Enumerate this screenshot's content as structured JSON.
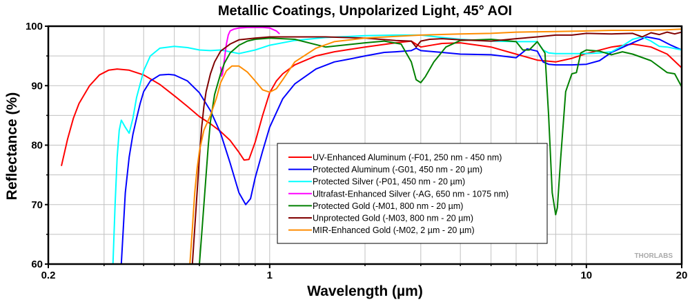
{
  "chart_data": {
    "type": "line",
    "title": "Metallic Coatings, Unpolarized Light, 45° AOI",
    "xlabel": "Wavelength (µm)",
    "ylabel": "Reflectance (%)",
    "xscale": "log",
    "xlim": [
      0.2,
      20
    ],
    "ylim": [
      60,
      100
    ],
    "xticks": [
      0.2,
      1,
      10,
      20
    ],
    "xtick_labels": [
      "0.2",
      "1",
      "10",
      "20"
    ],
    "xminor": [
      0.3,
      0.4,
      0.5,
      0.6,
      0.7,
      0.8,
      0.9,
      2,
      3,
      4,
      5,
      6,
      7,
      8,
      9
    ],
    "yticks": [
      60,
      70,
      80,
      90,
      100
    ],
    "ytick_labels": [
      "60",
      "70",
      "80",
      "90",
      "100"
    ],
    "yminor": [
      65,
      75,
      85,
      95
    ],
    "grid": true,
    "legend_position": "center-right",
    "watermark": "THORLABS",
    "series": [
      {
        "name": "UV-Enhanced Aluminum (-F01, 250 nm - 450 nm)",
        "color": "#ff0000",
        "x": [
          0.22,
          0.23,
          0.24,
          0.25,
          0.27,
          0.29,
          0.31,
          0.33,
          0.36,
          0.4,
          0.45,
          0.5,
          0.55,
          0.6,
          0.65,
          0.7,
          0.75,
          0.8,
          0.83,
          0.86,
          0.9,
          0.95,
          1.0,
          1.05,
          1.1,
          1.2,
          1.4,
          1.6,
          2.0,
          2.5,
          2.8,
          3.0,
          3.5,
          4.0,
          5.0,
          6.0,
          7.0,
          8.0,
          9.0,
          10.0,
          12.0,
          14.0,
          16.0,
          18.0,
          20.0
        ],
        "y": [
          76.5,
          81.0,
          84.5,
          87.0,
          90.0,
          91.8,
          92.6,
          92.8,
          92.6,
          91.8,
          90.2,
          88.3,
          86.5,
          84.8,
          83.6,
          82.3,
          80.8,
          78.8,
          77.5,
          77.6,
          80.5,
          85.0,
          88.8,
          90.8,
          92.0,
          93.5,
          95.0,
          95.7,
          96.5,
          97.2,
          97.5,
          96.5,
          97.1,
          97.2,
          96.5,
          95.3,
          94.3,
          94.0,
          94.6,
          95.4,
          96.5,
          97.0,
          96.5,
          95.3,
          93.0
        ]
      },
      {
        "name": "Protected Aluminum (-G01, 450 nm - 20 µm)",
        "color": "#0000ff",
        "x": [
          0.34,
          0.345,
          0.35,
          0.36,
          0.37,
          0.38,
          0.39,
          0.4,
          0.42,
          0.45,
          0.48,
          0.5,
          0.55,
          0.6,
          0.65,
          0.7,
          0.75,
          0.8,
          0.84,
          0.87,
          0.9,
          0.95,
          1.0,
          1.1,
          1.2,
          1.4,
          1.6,
          1.8,
          2.0,
          2.3,
          2.5,
          2.8,
          2.9,
          3.0,
          3.5,
          4.0,
          5.0,
          6.0,
          6.5,
          7.0,
          7.3,
          7.6,
          8.0,
          9.0,
          10.0,
          11.0,
          12.0,
          14.0,
          15.5,
          17.0,
          18.5,
          20.0
        ],
        "y": [
          60.0,
          66.0,
          72.0,
          78.0,
          81.8,
          84.5,
          87.0,
          89.0,
          90.8,
          91.8,
          91.9,
          91.8,
          90.8,
          88.8,
          85.8,
          82.0,
          77.0,
          72.0,
          70.0,
          71.0,
          74.5,
          79.0,
          83.0,
          87.8,
          90.3,
          92.8,
          94.0,
          94.5,
          95.0,
          95.6,
          95.7,
          95.9,
          96.3,
          95.9,
          95.6,
          95.3,
          95.2,
          94.7,
          96.2,
          95.8,
          94.0,
          93.6,
          93.5,
          93.5,
          93.6,
          94.2,
          95.6,
          97.2,
          98.2,
          97.8,
          96.8,
          96.0
        ]
      },
      {
        "name": "Protected Silver (-P01, 450 nm - 20 µm)",
        "color": "#00ffff",
        "x": [
          0.32,
          0.325,
          0.33,
          0.335,
          0.34,
          0.35,
          0.36,
          0.37,
          0.38,
          0.4,
          0.42,
          0.45,
          0.5,
          0.55,
          0.6,
          0.65,
          0.7,
          0.75,
          0.8,
          0.9,
          1.0,
          1.2,
          1.5,
          2.0,
          2.5,
          3.0,
          3.5,
          4.0,
          5.0,
          6.0,
          7.0,
          7.3,
          7.6,
          8.0,
          9.0,
          10.0,
          11.0,
          12.0,
          13.0,
          14.0,
          15.0,
          16.0,
          17.0,
          18.0,
          20.0
        ],
        "y": [
          60.0,
          70.0,
          78.0,
          82.5,
          84.2,
          83.0,
          82.0,
          84.5,
          88.0,
          92.5,
          95.0,
          96.3,
          96.6,
          96.4,
          96.0,
          95.9,
          96.0,
          95.7,
          95.4,
          96.0,
          96.8,
          97.6,
          98.1,
          98.4,
          98.5,
          98.5,
          98.1,
          97.8,
          97.5,
          97.4,
          97.4,
          96.0,
          95.5,
          95.4,
          95.4,
          95.4,
          95.5,
          95.7,
          96.7,
          97.8,
          98.2,
          97.5,
          96.6,
          96.5,
          96.0
        ]
      },
      {
        "name": "Ultrafast-Enhanced Silver (-AG, 650 nm - 1075 nm)",
        "color": "#ff00ff",
        "x": [
          0.7,
          0.705,
          0.71,
          0.72,
          0.73,
          0.74,
          0.75,
          0.77,
          0.8,
          0.85,
          0.9,
          0.95,
          1.0,
          1.05,
          1.075
        ],
        "y": [
          93.2,
          91.6,
          92.0,
          94.5,
          97.0,
          98.5,
          99.2,
          99.5,
          99.7,
          99.8,
          99.8,
          99.8,
          99.7,
          99.2,
          98.7
        ]
      },
      {
        "name": "Protected Gold (-M01, 800 nm - 20 µm)",
        "color": "#008000",
        "x": [
          0.6,
          0.61,
          0.62,
          0.63,
          0.64,
          0.65,
          0.67,
          0.7,
          0.72,
          0.75,
          0.8,
          0.85,
          0.9,
          1.0,
          1.2,
          1.5,
          2.0,
          2.3,
          2.6,
          2.8,
          2.9,
          3.0,
          3.1,
          3.3,
          3.6,
          4.0,
          5.0,
          6.0,
          6.3,
          6.6,
          7.0,
          7.4,
          7.6,
          7.8,
          8.0,
          8.1,
          8.3,
          8.6,
          9.0,
          9.3,
          9.6,
          10.0,
          11.0,
          12.0,
          13.0,
          14.0,
          16.0,
          18.0,
          19.0,
          20.0
        ],
        "y": [
          60.0,
          65.0,
          70.0,
          75.0,
          80.0,
          84.0,
          88.5,
          92.0,
          93.8,
          95.5,
          96.8,
          97.5,
          97.8,
          98.0,
          97.8,
          96.5,
          97.2,
          97.5,
          97.0,
          94.0,
          91.0,
          90.5,
          91.5,
          94.0,
          96.5,
          97.6,
          97.8,
          97.4,
          96.0,
          96.0,
          97.4,
          95.5,
          85.0,
          72.0,
          68.3,
          69.5,
          78.0,
          89.0,
          92.0,
          92.2,
          95.5,
          96.0,
          95.8,
          95.2,
          95.7,
          95.3,
          94.2,
          92.2,
          92.0,
          89.8
        ]
      },
      {
        "name": "Unprotected Gold (-M03, 800 nm - 20 µm)",
        "color": "#800000",
        "x": [
          0.57,
          0.58,
          0.59,
          0.6,
          0.61,
          0.62,
          0.63,
          0.65,
          0.67,
          0.7,
          0.75,
          0.8,
          0.9,
          1.0,
          1.5,
          2.0,
          2.5,
          2.8,
          2.9,
          3.0,
          3.2,
          3.5,
          4.0,
          5.0,
          6.0,
          7.0,
          8.0,
          9.0,
          10.0,
          12.0,
          14.0,
          15.0,
          16.0,
          17.0,
          18.0,
          19.0,
          20.0
        ],
        "y": [
          60.0,
          66.0,
          72.0,
          78.0,
          83.0,
          86.5,
          89.0,
          92.0,
          94.0,
          95.8,
          97.0,
          97.7,
          98.0,
          98.2,
          98.2,
          98.0,
          97.6,
          97.5,
          96.5,
          97.5,
          97.8,
          97.9,
          97.7,
          97.5,
          97.9,
          98.2,
          98.5,
          98.5,
          98.8,
          98.7,
          98.8,
          98.2,
          98.9,
          98.6,
          99.0,
          98.7,
          99.0
        ]
      },
      {
        "name": "MIR-Enhanced Gold (-M02, 2 µm - 20 µm)",
        "color": "#ff8c00",
        "x": [
          0.56,
          0.57,
          0.58,
          0.59,
          0.6,
          0.62,
          0.65,
          0.68,
          0.7,
          0.73,
          0.76,
          0.8,
          0.85,
          0.9,
          0.95,
          1.0,
          1.05,
          1.1,
          1.2,
          1.4,
          1.6,
          2.0,
          2.5,
          3.0,
          4.0,
          5.0,
          6.0,
          8.0,
          10.0,
          12.0,
          15.0,
          18.0,
          20.0
        ],
        "y": [
          60.0,
          66.0,
          72.0,
          76.0,
          79.0,
          82.5,
          85.0,
          88.0,
          90.5,
          92.5,
          93.3,
          93.3,
          92.3,
          90.8,
          89.3,
          88.9,
          89.5,
          91.0,
          94.0,
          96.3,
          97.4,
          98.0,
          98.3,
          98.5,
          98.7,
          98.8,
          99.0,
          99.1,
          99.2,
          99.3,
          99.3,
          99.4,
          99.5
        ]
      }
    ]
  }
}
